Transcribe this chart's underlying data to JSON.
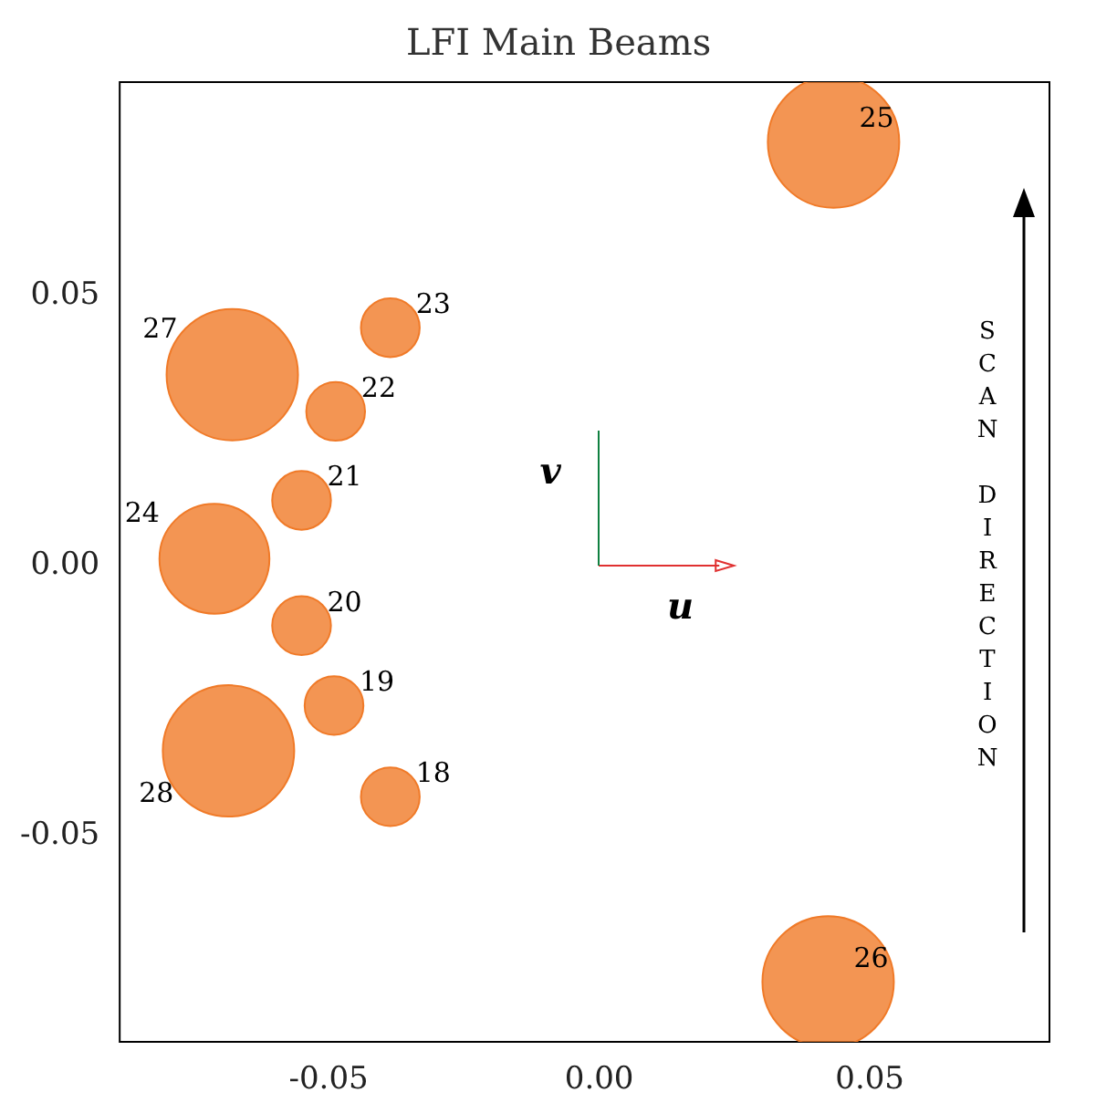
{
  "chart_data": {
    "type": "bubble",
    "title": "LFI Main Beams",
    "series": [
      {
        "color": "#f07a28",
        "x": [
          -0.0386,
          -0.049,
          -0.055,
          -0.055,
          -0.0487,
          -0.0386,
          -0.0711,
          0.0433,
          0.0423,
          -0.0678,
          -0.0685
        ],
        "values": [
          -0.0428,
          -0.0259,
          -0.0111,
          0.0121,
          0.0286,
          0.0441,
          0.0013,
          0.0785,
          -0.0771,
          0.0354,
          -0.0343
        ],
        "sizes": [
          0.2,
          0.2,
          0.2,
          0.2,
          0.2,
          0.2,
          0.7,
          1,
          1,
          1,
          1
        ]
      }
    ],
    "xlim": [
      -0.0886,
      0.0832
    ],
    "ylim": [
      -0.0882,
      0.0896
    ],
    "xticks": [
      {
        "value": -0.05,
        "label": "-0.05"
      },
      {
        "value": 0,
        "label": "0.00"
      },
      {
        "value": 0.05,
        "label": "0.05"
      }
    ],
    "yticks": [
      {
        "value": -0.05,
        "label": "-0.05"
      },
      {
        "value": 0,
        "label": "0.00"
      },
      {
        "value": 0.05,
        "label": "0.05"
      }
    ],
    "grid": false,
    "legend": false,
    "annotations": [
      {
        "text": "18",
        "x": -0.0386,
        "y": -0.0428
      },
      {
        "text": "19",
        "x": -0.049,
        "y": -0.0259
      },
      {
        "text": "20",
        "x": -0.055,
        "y": -0.0111
      },
      {
        "text": "21",
        "x": -0.055,
        "y": 0.0121
      },
      {
        "text": "22",
        "x": -0.0487,
        "y": 0.0286
      },
      {
        "text": "23",
        "x": -0.0386,
        "y": 0.0441
      },
      {
        "text": "24",
        "x": -0.0711,
        "y": 0.0013
      },
      {
        "text": "25",
        "x": 0.0433,
        "y": 0.0785
      },
      {
        "text": "26",
        "x": 0.0423,
        "y": -0.0771
      },
      {
        "text": "27",
        "x": -0.0678,
        "y": 0.0354
      },
      {
        "text": "28",
        "x": -0.0685,
        "y": -0.0343
      },
      "u",
      "v",
      "SCAN DIRECTION"
    ]
  }
}
